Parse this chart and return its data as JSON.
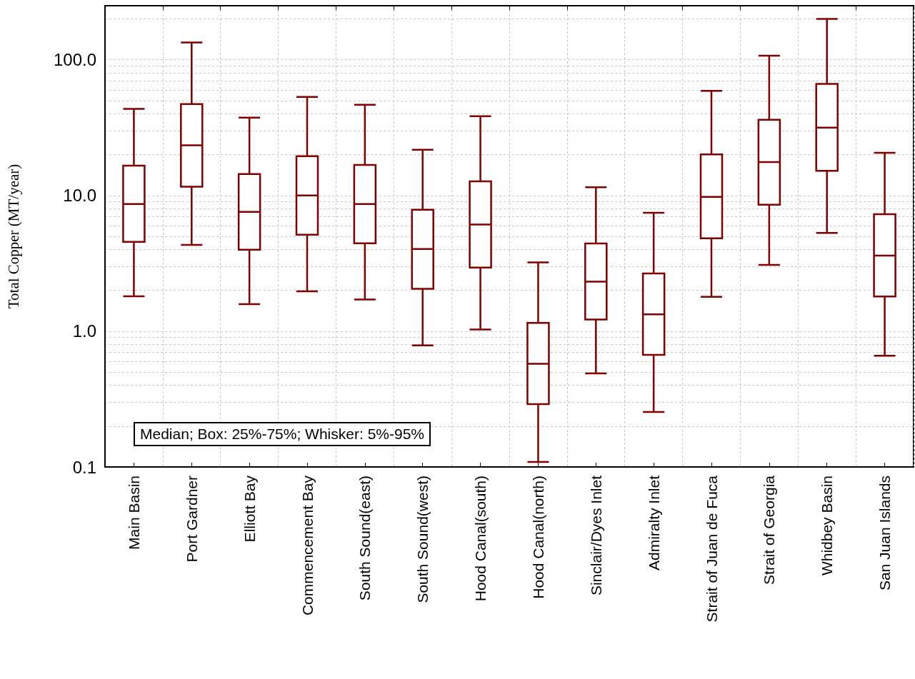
{
  "chart_data": {
    "type": "box",
    "ylabel": "Total Copper (MT/year)",
    "categories": [
      "Main Basin",
      "Port Gardner",
      "Elliott Bay",
      "Commencement Bay",
      "South Sound(east)",
      "South Sound(west)",
      "Hood Canal(south)",
      "Hood Canal(north)",
      "Sinclair/Dyes Inlet",
      "Admiralty Inlet",
      "Strait of Juan de Fuca",
      "Strait of Georgia",
      "Whidbey Basin",
      "San Juan Islands"
    ],
    "series": [
      {
        "color": "#800000",
        "boxes": [
          {
            "low": 1.81,
            "q1": 4.55,
            "median": 8.65,
            "q3": 16.6,
            "high": 43.4
          },
          {
            "low": 4.33,
            "q1": 11.6,
            "median": 23.4,
            "q3": 47.2,
            "high": 134
          },
          {
            "low": 1.58,
            "q1": 3.98,
            "median": 7.57,
            "q3": 14.4,
            "high": 37.5
          },
          {
            "low": 1.97,
            "q1": 5.14,
            "median": 10.0,
            "q3": 19.5,
            "high": 53.2
          },
          {
            "low": 1.71,
            "q1": 4.44,
            "median": 8.65,
            "q3": 16.8,
            "high": 46.6
          },
          {
            "low": 0.785,
            "q1": 2.05,
            "median": 4.03,
            "q3": 7.85,
            "high": 21.7
          },
          {
            "low": 1.03,
            "q1": 2.94,
            "median": 6.1,
            "q3": 12.7,
            "high": 38.4
          },
          {
            "low": 0.109,
            "q1": 0.29,
            "median": 0.575,
            "q3": 1.15,
            "high": 3.21
          },
          {
            "low": 0.488,
            "q1": 1.22,
            "median": 2.32,
            "q3": 4.43,
            "high": 11.5
          },
          {
            "low": 0.254,
            "q1": 0.67,
            "median": 1.33,
            "q3": 2.66,
            "high": 7.46
          },
          {
            "low": 1.79,
            "q1": 4.83,
            "median": 9.77,
            "q3": 20.1,
            "high": 59
          },
          {
            "low": 3.08,
            "q1": 8.55,
            "median": 17.6,
            "q3": 36.1,
            "high": 107
          },
          {
            "low": 5.29,
            "q1": 15.2,
            "median": 31.6,
            "q3": 66.3,
            "high": 200
          },
          {
            "low": 0.66,
            "q1": 1.8,
            "median": 3.61,
            "q3": 7.27,
            "high": 20.6
          }
        ]
      }
    ],
    "log": "y",
    "ylim": [
      0.1,
      250
    ],
    "yticks": [
      {
        "value": 0.1,
        "label": "0.1"
      },
      {
        "value": 0.2,
        "label": null
      },
      {
        "value": 0.3,
        "label": null
      },
      {
        "value": 0.4,
        "label": null
      },
      {
        "value": 0.5,
        "label": null
      },
      {
        "value": 0.6,
        "label": null
      },
      {
        "value": 0.7,
        "label": null
      },
      {
        "value": 0.8,
        "label": null
      },
      {
        "value": 0.9,
        "label": null
      },
      {
        "value": 1,
        "label": "1.0"
      },
      {
        "value": 2,
        "label": null
      },
      {
        "value": 3,
        "label": null
      },
      {
        "value": 4,
        "label": null
      },
      {
        "value": 5,
        "label": null
      },
      {
        "value": 6,
        "label": null
      },
      {
        "value": 7,
        "label": null
      },
      {
        "value": 8,
        "label": null
      },
      {
        "value": 9,
        "label": null
      },
      {
        "value": 10,
        "label": "10.0"
      },
      {
        "value": 20,
        "label": null
      },
      {
        "value": 30,
        "label": null
      },
      {
        "value": 40,
        "label": null
      },
      {
        "value": 50,
        "label": null
      },
      {
        "value": 60,
        "label": null
      },
      {
        "value": 70,
        "label": null
      },
      {
        "value": 80,
        "label": null
      },
      {
        "value": 90,
        "label": null
      },
      {
        "value": 100,
        "label": "100.0"
      },
      {
        "value": 200,
        "label": null
      }
    ],
    "grid": true,
    "annotations": [
      "Median; Box: 25%-75%; Whisker: 5%-95%"
    ]
  }
}
